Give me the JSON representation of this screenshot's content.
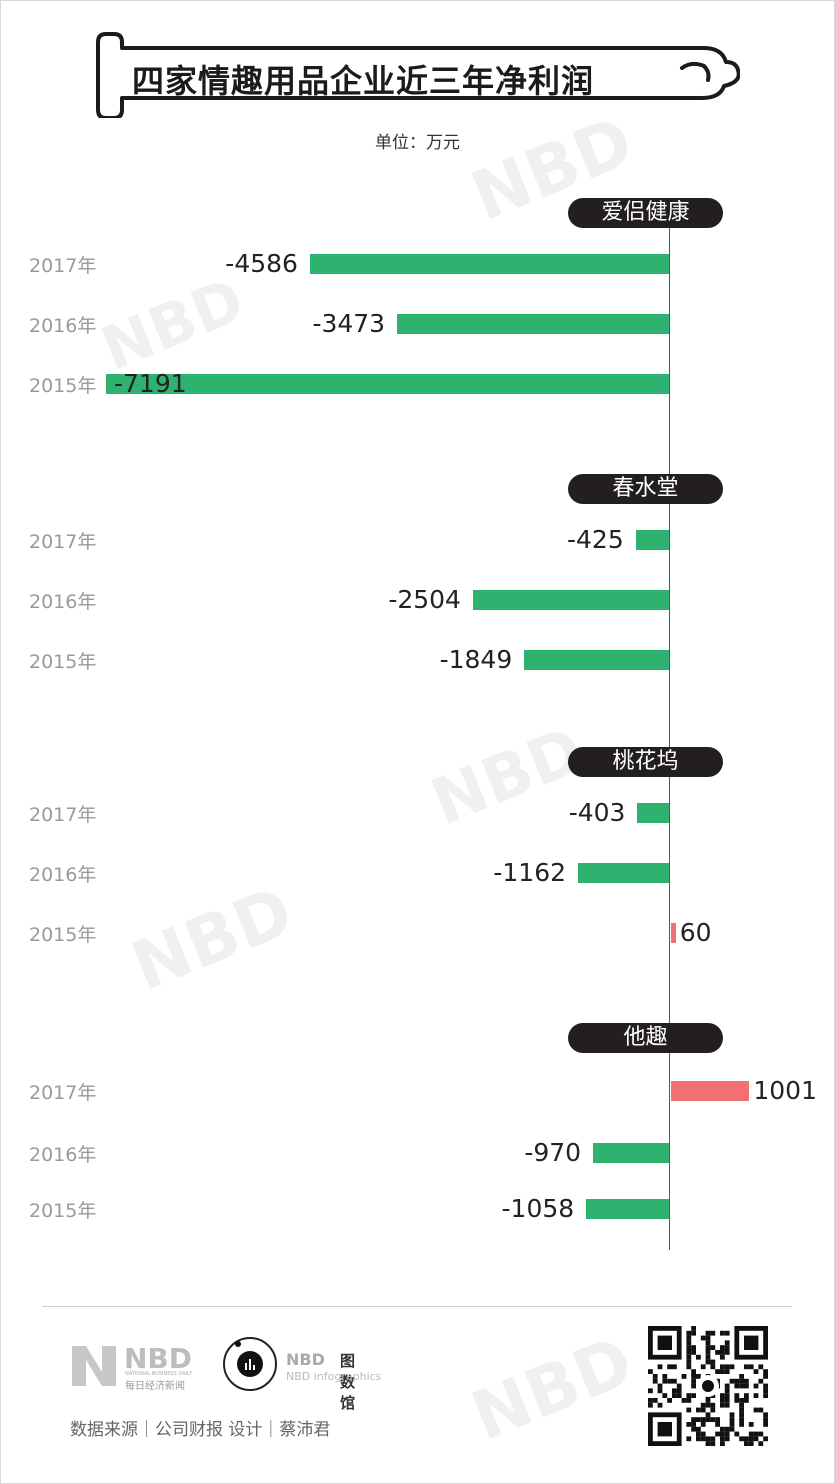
{
  "chart_data": {
    "type": "bar",
    "orientation": "horizontal",
    "title": "四家情趣用品企业近三年净利润",
    "unit_label": "单位：万元",
    "categories": [
      "2017年",
      "2016年",
      "2015年"
    ],
    "groups": [
      {
        "name": "爱侣健康",
        "values": [
          -4586,
          -3473,
          -7191
        ],
        "labels": [
          "-4586",
          "-3473",
          "-7191"
        ]
      },
      {
        "name": "春水堂",
        "values": [
          -425,
          -2504,
          -1849
        ],
        "labels": [
          "-425",
          "-2504",
          "-1849"
        ]
      },
      {
        "name": "桃花坞",
        "values": [
          -403,
          -1162,
          60
        ],
        "labels": [
          "-403",
          "-1162",
          "60"
        ]
      },
      {
        "name": "他趣",
        "values": [
          1001,
          -970,
          -1058
        ],
        "labels": [
          "1001",
          "-970",
          "-1058"
        ]
      }
    ],
    "colors": {
      "negative": "#2db36f",
      "positive": "#f07074"
    }
  },
  "footer": {
    "brand1": "NBD",
    "brand1_sub": "NATIONAL BUSINESS DAILY",
    "brand1_cn": "每日经济新闻",
    "brand2": "NBD",
    "brand2_cn": "图数馆",
    "brand2_sub": "NBD infographics",
    "credits": "数据来源｜公司财报 设计｜蔡沛君"
  },
  "watermark": "NBD"
}
